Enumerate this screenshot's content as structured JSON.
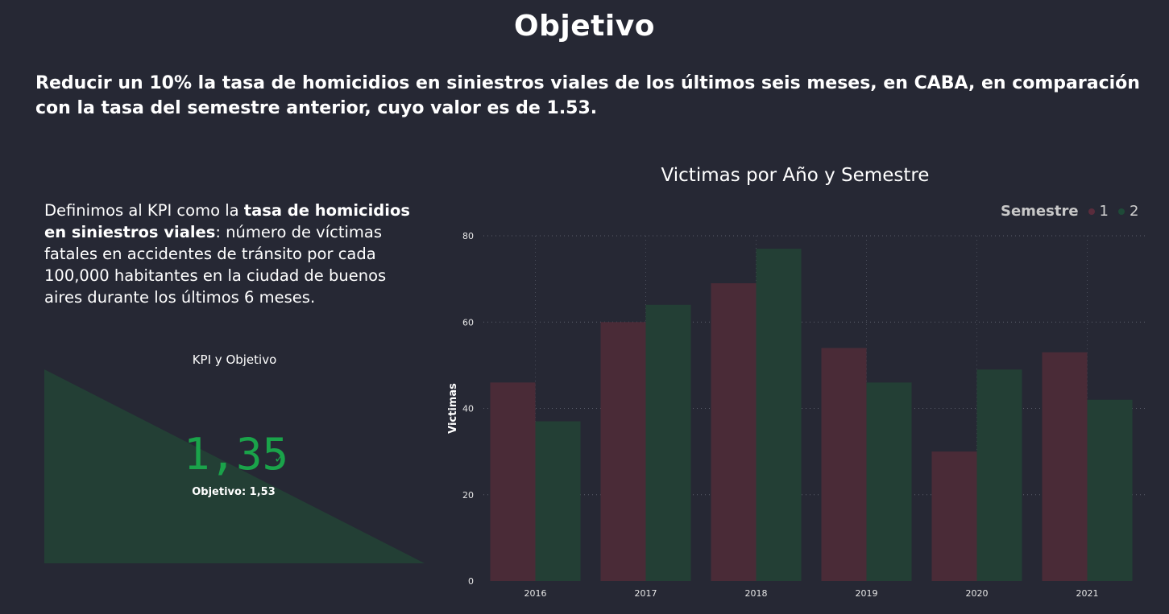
{
  "page": {
    "title": "Objetivo",
    "objective_text": "Reducir un 10% la tasa de homicidios en siniestros viales de los últimos seis meses, en CABA, en comparación con la tasa  del semestre anterior, cuyo valor es de 1.53."
  },
  "kpi": {
    "def_prefix": "Definimos al KPI como la ",
    "def_bold": "tasa de homicidios en siniestros viales",
    "def_suffix": ": número de víctimas fatales en accidentes de tránsito por cada 100,000 habitantes en la ciudad de buenos aires durante los últimos 6 meses.",
    "visual_title": "KPI y Objetivo",
    "value": "1,35",
    "goal_label": "Objetivo: 1,53",
    "colors": {
      "triangle": "#233f35",
      "value": "#1aa34a"
    }
  },
  "chart_data": {
    "type": "bar",
    "title": "Victimas por Año y Semestre",
    "ylabel": "Victimas",
    "xlabel": "",
    "legend_title": "Semestre",
    "legend_position": "top-right",
    "categories": [
      "2016",
      "2017",
      "2018",
      "2019",
      "2020",
      "2021"
    ],
    "series": [
      {
        "name": "1",
        "color": "#4a2b37",
        "dot_color": "#5a2c3c",
        "values": [
          46,
          60,
          69,
          54,
          30,
          53
        ]
      },
      {
        "name": "2",
        "color": "#233f35",
        "dot_color": "#1f4a38",
        "values": [
          37,
          64,
          77,
          46,
          49,
          42
        ]
      }
    ],
    "ylim": [
      0,
      80
    ],
    "yticks": [
      0,
      20,
      40,
      60,
      80
    ],
    "grid": true
  }
}
